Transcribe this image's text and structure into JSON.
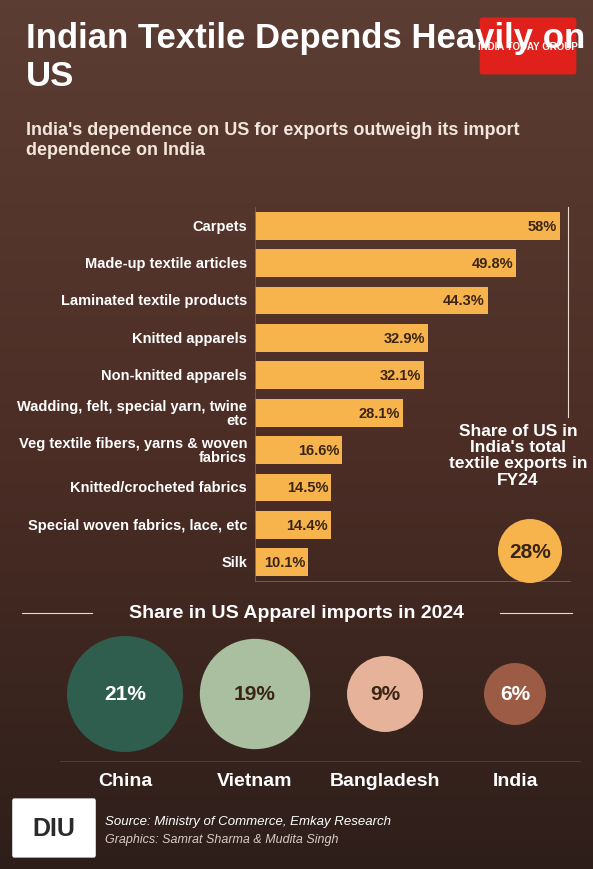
{
  "header": {
    "title": "Indian Textile Depends Heavily on US",
    "subtitle": "India's dependence on US for exports outweigh its import dependence on India",
    "logo": "INDIA TODAY GROUP"
  },
  "chart_data": [
    {
      "type": "bar",
      "orientation": "horizontal",
      "categories": [
        "Carpets",
        "Made-up textile articles",
        "Laminated textile products",
        "Knitted apparels",
        "Non-knitted apparels",
        "Wadding, felt, special yarn, twine etc",
        "Veg textile fibers, yarns & woven fabrics",
        "Knitted/crocheted fabrics",
        "Special woven fabrics, lace, etc",
        "Silk"
      ],
      "values": [
        58,
        49.8,
        44.3,
        32.9,
        32.1,
        28.1,
        16.6,
        14.5,
        14.4,
        10.1
      ],
      "value_labels": [
        "58%",
        "49.8%",
        "44.3%",
        "32.9%",
        "32.1%",
        "28.1%",
        "16.6%",
        "14.5%",
        "14.4%",
        "10.1%"
      ],
      "data_labels": true,
      "color": "#f7b34c",
      "xlim": [
        0,
        60
      ],
      "xticks": [],
      "tick_labels": "y",
      "annotations": [
        {
          "text": "Share of US in India's total textile exports in FY24",
          "value": 28,
          "value_label": "28%"
        }
      ]
    },
    {
      "type": "bubble",
      "title": "Share in US Apparel imports in 2024",
      "categories": [
        "China",
        "Vietnam",
        "Bangladesh",
        "India"
      ],
      "values": [
        21,
        19,
        9,
        6
      ],
      "value_labels": [
        "21%",
        "19%",
        "9%",
        "6%"
      ],
      "colors": [
        "#2f5e4e",
        "#a9bf9f",
        "#e7b29a",
        "#9b5b45"
      ],
      "data_labels": true,
      "tick_labels": "x"
    }
  ],
  "footer": {
    "source": "Source: Ministry of Commerce, Emkay Research",
    "credits": "Graphics: Samrat Sharma & Mudita Singh",
    "logo": "DIU"
  }
}
